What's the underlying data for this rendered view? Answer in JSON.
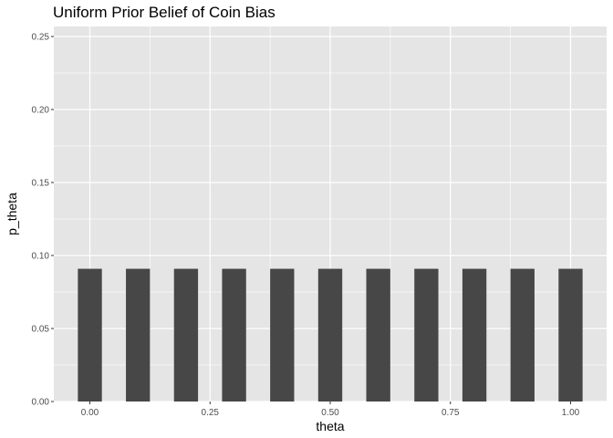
{
  "chart_data": {
    "type": "bar",
    "title": "Uniform Prior Belief of Coin Bias",
    "xlabel": "theta",
    "ylabel": "p_theta",
    "x": [
      0.0,
      0.1,
      0.2,
      0.3,
      0.4,
      0.5,
      0.6,
      0.7,
      0.8,
      0.9,
      1.0
    ],
    "values": [
      0.0909,
      0.0909,
      0.0909,
      0.0909,
      0.0909,
      0.0909,
      0.0909,
      0.0909,
      0.0909,
      0.0909,
      0.0909
    ],
    "xlim": [
      -0.075,
      1.075
    ],
    "ylim": [
      0,
      0.25
    ],
    "x_ticks": [
      0,
      0.25,
      0.5,
      0.75,
      1.0
    ],
    "x_tick_labels": [
      "0.00",
      "0.25",
      "0.50",
      "0.75",
      "1.00"
    ],
    "y_ticks": [
      0,
      0.05,
      0.1,
      0.15,
      0.2,
      0.25
    ],
    "y_tick_labels": [
      "0.00",
      "0.05",
      "0.10",
      "0.15",
      "0.20",
      "0.25"
    ],
    "grid": true,
    "colors": {
      "panel": "#e5e5e5",
      "bar": "#474747",
      "grid": "#ffffff"
    }
  }
}
